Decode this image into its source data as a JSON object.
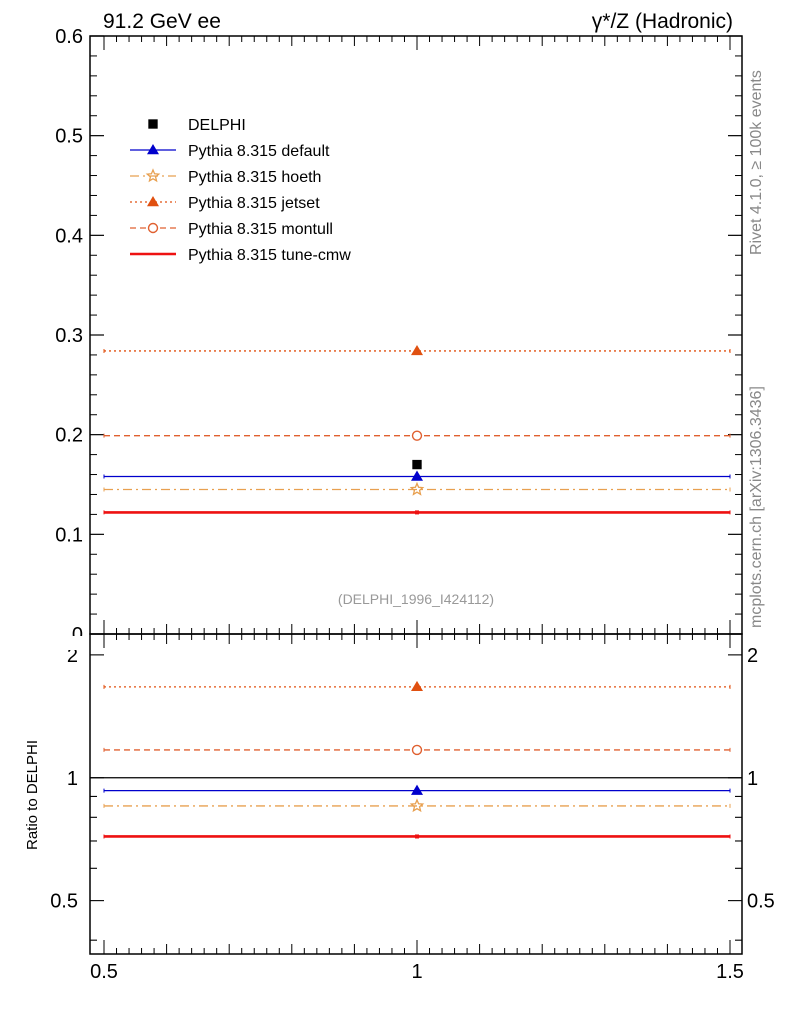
{
  "header": {
    "energy_label": "91.2 GeV ee",
    "process_label": "γ*/Z (Hadronic)",
    "rivet_label": "Rivet 4.1.0, ≥ 100k events",
    "mcplots_label": "mcplots.cern.ch [arXiv:1306.3436]",
    "analysis_label": "(DELPHI_1996_I424112)"
  },
  "chart_data": {
    "type": "scatter",
    "x_range": [
      0.5,
      1.5
    ],
    "x_ticks": [
      "0.5",
      "1",
      "1.5"
    ],
    "main": {
      "ylim": [
        0,
        0.6
      ],
      "y_ticks": [
        "0",
        "0.1",
        "0.2",
        "0.3",
        "0.4",
        "0.5",
        "0.6"
      ],
      "ylabel": ""
    },
    "ratio": {
      "ylabel": "Ratio to DELPHI",
      "ylim": [
        0.37,
        2.25
      ],
      "y_ticks": [
        "0.5",
        "1",
        "2"
      ],
      "reference_line": 1
    },
    "data": {
      "name": "DELPHI",
      "x": 1,
      "y": 0.17,
      "color": "#000000",
      "marker": "square"
    },
    "series": [
      {
        "name": "Pythia 8.315 default",
        "value": 0.158,
        "ratio": 0.93,
        "color": "#0000cc",
        "style": "solid",
        "marker": "triangle"
      },
      {
        "name": "Pythia 8.315 hoeth",
        "value": 0.145,
        "ratio": 0.853,
        "color": "#e8a050",
        "style": "dashdot",
        "marker": "star"
      },
      {
        "name": "Pythia 8.315 jetset",
        "value": 0.284,
        "ratio": 1.67,
        "color": "#e05010",
        "style": "dotted",
        "marker": "triangle"
      },
      {
        "name": "Pythia 8.315 montull",
        "value": 0.199,
        "ratio": 1.17,
        "color": "#e06030",
        "style": "dashed",
        "marker": "circle-open"
      },
      {
        "name": "Pythia 8.315 tune-cmw",
        "value": 0.122,
        "ratio": 0.718,
        "color": "#ee1111",
        "style": "thick",
        "marker": "none"
      }
    ]
  }
}
